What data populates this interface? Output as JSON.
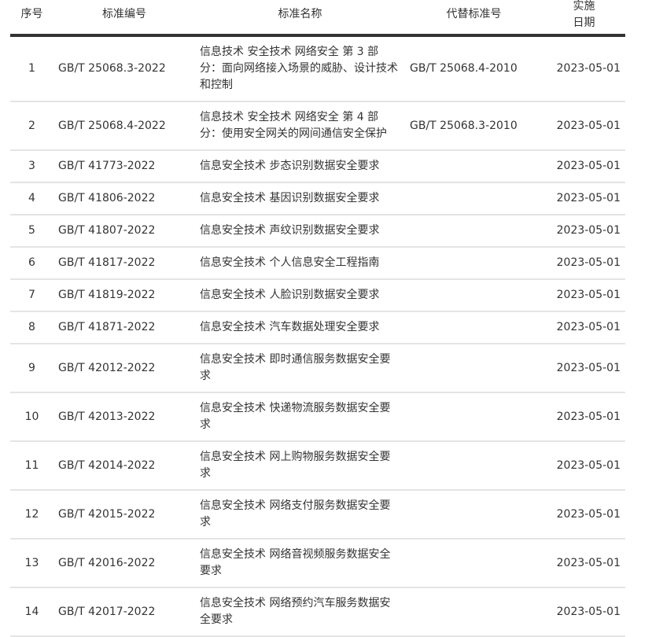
{
  "headers": [
    "序号",
    "标准编号",
    "标准名称",
    "代替标准号",
    "实施日期"
  ],
  "rows": [
    {
      "no": "1",
      "code": "GB/T 25068.3-2022",
      "name": "信息技术 安全技术 网络安全 第 3 部分：面向网络接入场景的威胁、设计技术和控制",
      "replaces": "GB/T 25068.4-2010",
      "date": "2023-05-01"
    },
    {
      "no": "2",
      "code": "GB/T 25068.4-2022",
      "name": "信息技术 安全技术 网络安全 第 4 部分：使用安全网关的网间通信安全保护",
      "replaces": "GB/T 25068.3-2010",
      "date": "2023-05-01"
    },
    {
      "no": "3",
      "code": "GB/T 41773-2022",
      "name": "信息安全技术 步态识别数据安全要求",
      "replaces": "",
      "date": "2023-05-01"
    },
    {
      "no": "4",
      "code": "GB/T 41806-2022",
      "name": "信息安全技术 基因识别数据安全要求",
      "replaces": "",
      "date": "2023-05-01"
    },
    {
      "no": "5",
      "code": "GB/T 41807-2022",
      "name": "信息安全技术 声纹识别数据安全要求",
      "replaces": "",
      "date": "2023-05-01"
    },
    {
      "no": "6",
      "code": "GB/T 41817-2022",
      "name": "信息安全技术 个人信息安全工程指南",
      "replaces": "",
      "date": "2023-05-01"
    },
    {
      "no": "7",
      "code": "GB/T 41819-2022",
      "name": "信息安全技术 人脸识别数据安全要求",
      "replaces": "",
      "date": "2023-05-01"
    },
    {
      "no": "8",
      "code": "GB/T 41871-2022",
      "name": "信息安全技术 汽车数据处理安全要求",
      "replaces": "",
      "date": "2023-05-01"
    },
    {
      "no": "9",
      "code": "GB/T 42012-2022",
      "name": "信息安全技术 即时通信服务数据安全要求",
      "replaces": "",
      "date": "2023-05-01"
    },
    {
      "no": "10",
      "code": "GB/T 42013-2022",
      "name": "信息安全技术 快递物流服务数据安全要求",
      "replaces": "",
      "date": "2023-05-01"
    },
    {
      "no": "11",
      "code": "GB/T 42014-2022",
      "name": "信息安全技术 网上购物服务数据安全要求",
      "replaces": "",
      "date": "2023-05-01"
    },
    {
      "no": "12",
      "code": "GB/T 42015-2022",
      "name": "信息安全技术 网络支付服务数据安全要求",
      "replaces": "",
      "date": "2023-05-01"
    },
    {
      "no": "13",
      "code": "GB/T 42016-2022",
      "name": "信息安全技术 网络音视频服务数据安全要求",
      "replaces": "",
      "date": "2023-05-01"
    },
    {
      "no": "14",
      "code": "GB/T 42017-2022",
      "name": "信息安全技术 网络预约汽车服务数据安全要求",
      "replaces": "",
      "date": "2023-05-01"
    }
  ]
}
